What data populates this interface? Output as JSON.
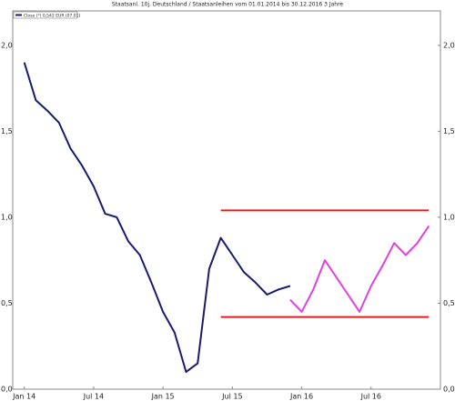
{
  "chart_data": {
    "type": "line",
    "title": "Staatsanl. 10j. Deutschland / Staatsanleihen vom 01.01.2014 bis 30.12.2016 3 Jahre",
    "series": [
      {
        "name": "Close (*) 0,542 EUR (07.01)",
        "color": "#1a1a6e",
        "x": [
          "2014-01",
          "2014-02",
          "2014-03",
          "2014-04",
          "2014-05",
          "2014-06",
          "2014-07",
          "2014-08",
          "2014-09",
          "2014-10",
          "2014-11",
          "2014-12",
          "2015-01",
          "2015-02",
          "2015-03",
          "2015-04",
          "2015-05",
          "2015-06",
          "2015-07",
          "2015-08",
          "2015-09",
          "2015-10",
          "2015-11",
          "2015-12"
        ],
        "values": [
          1.9,
          1.68,
          1.62,
          1.55,
          1.4,
          1.3,
          1.18,
          1.02,
          1.0,
          0.86,
          0.78,
          0.62,
          0.45,
          0.33,
          0.1,
          0.15,
          0.7,
          0.88,
          0.78,
          0.68,
          0.62,
          0.55,
          0.58,
          0.6
        ]
      },
      {
        "color": "#e040e0",
        "x": [
          "2015-12",
          "2016-01",
          "2016-02",
          "2016-03",
          "2016-04",
          "2016-05",
          "2016-06",
          "2016-07",
          "2016-08",
          "2016-09",
          "2016-10",
          "2016-11",
          "2016-12"
        ],
        "values": [
          0.52,
          0.45,
          0.58,
          0.75,
          0.65,
          0.55,
          0.45,
          0.6,
          0.72,
          0.85,
          0.78,
          0.85,
          0.95
        ]
      }
    ],
    "hlines": [
      {
        "y": 1.04,
        "x0": "2015-06",
        "x1": "2016-12",
        "color": "#e02020"
      },
      {
        "y": 0.42,
        "x0": "2015-06",
        "x1": "2016-12",
        "color": "#e02020"
      }
    ],
    "xlim": [
      "2013-12",
      "2017-01"
    ],
    "xticks": [
      {
        "value": "2014-01",
        "label": "Jan 14"
      },
      {
        "value": "2014-07",
        "label": "Jul 14"
      },
      {
        "value": "2015-01",
        "label": "Jan 15"
      },
      {
        "value": "2015-07",
        "label": "Jul 15"
      },
      {
        "value": "2016-01",
        "label": "Jan 16"
      },
      {
        "value": "2016-07",
        "label": "Jul 16"
      }
    ],
    "ylim": [
      0,
      2.2
    ],
    "yticks": [
      {
        "value": 0,
        "label": "0,0"
      },
      {
        "value": 0.5,
        "label": "0,5"
      },
      {
        "value": 1,
        "label": "1,0"
      },
      {
        "value": 1.5,
        "label": "1,5"
      },
      {
        "value": 2,
        "label": "2,0"
      }
    ]
  }
}
